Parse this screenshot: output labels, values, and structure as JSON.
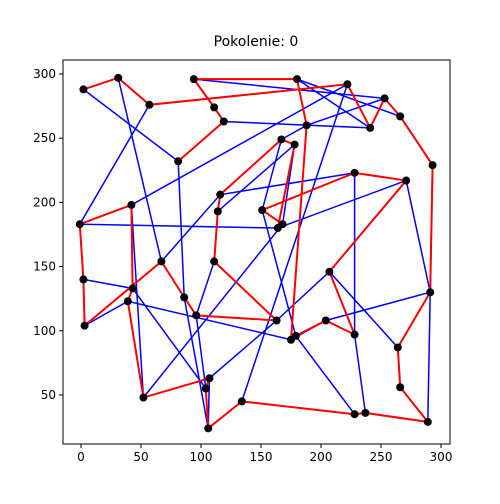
{
  "chart_data": {
    "type": "route",
    "title": "Pokolenie: 0",
    "xlim": [
      -15,
      307.5
    ],
    "ylim": [
      11.8,
      310.9
    ],
    "xticks": [
      0,
      50,
      100,
      150,
      200,
      250,
      300
    ],
    "yticks": [
      50,
      100,
      150,
      200,
      250,
      300
    ],
    "cities": {
      "color": "#000000",
      "x": [
        2,
        31,
        57,
        94,
        180,
        111,
        119,
        222,
        253,
        241,
        188,
        266,
        293,
        271,
        228,
        167,
        178,
        81,
        116,
        114,
        151,
        164,
        168,
        -1,
        42,
        2,
        67,
        111,
        207,
        3,
        43,
        39,
        86,
        96,
        163,
        204,
        228,
        175,
        179,
        291,
        264,
        266,
        52,
        107,
        104,
        134,
        106,
        228,
        237,
        289
      ],
      "y": [
        288,
        297,
        276,
        296,
        296,
        274,
        263,
        292,
        281,
        258,
        260,
        267,
        229,
        217,
        223,
        249,
        245,
        232,
        206,
        193,
        194,
        180,
        183,
        183,
        198,
        140,
        154,
        154,
        146,
        104,
        133,
        123,
        126,
        112,
        108,
        108,
        97,
        93,
        96,
        130,
        87,
        56,
        48,
        63,
        55,
        45,
        24,
        35,
        36,
        29
      ]
    },
    "routes": [
      {
        "color": "#0000ff",
        "width": 1.5,
        "order": [
          0,
          17,
          32,
          46,
          43,
          34,
          28,
          40,
          41,
          49,
          12,
          11,
          4,
          9,
          6,
          5,
          3,
          8,
          10,
          15,
          20,
          38,
          47,
          48,
          36,
          14,
          18,
          26,
          1,
          2,
          23,
          21,
          13,
          39,
          35,
          37,
          31,
          29,
          25,
          30,
          44,
          33,
          27,
          19,
          16,
          22,
          42,
          24,
          7,
          45
        ]
      },
      {
        "color": "#ff0000",
        "width": 2,
        "order": [
          0,
          1,
          2,
          7,
          9,
          8,
          11,
          12,
          39,
          40,
          41,
          49,
          48,
          47,
          45,
          46,
          44,
          43,
          42,
          31,
          30,
          24,
          23,
          25,
          29,
          26,
          32,
          33,
          34,
          27,
          19,
          18,
          15,
          16,
          21,
          22,
          20,
          14,
          13,
          28,
          36,
          35,
          38,
          37,
          10,
          4,
          3,
          5,
          6,
          17
        ]
      }
    ]
  }
}
